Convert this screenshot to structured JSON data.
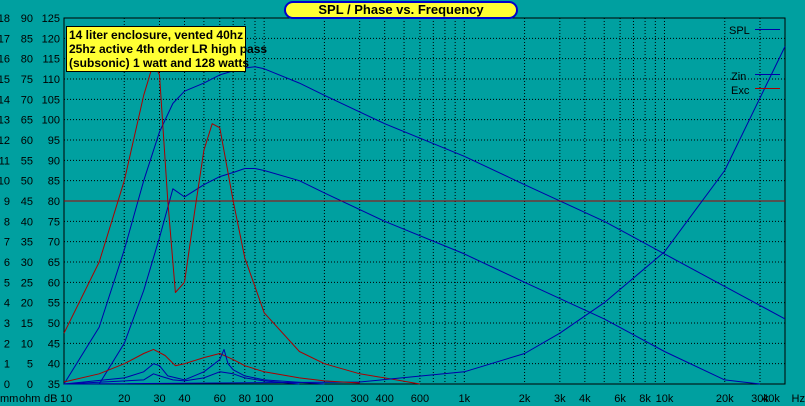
{
  "chart_data": {
    "type": "line",
    "title": "SPL / Phase vs. Frequency",
    "annotation_lines": [
      "14 liter enclosure, vented 40hz",
      "25hz active 4th order LR high pass",
      "(subsonic) 1 watt and 128 watts"
    ],
    "axis_unit_labels": [
      "mm",
      "ohm",
      "dB"
    ],
    "x_tick_labels": [
      "10",
      "20",
      "30",
      "40",
      "60",
      "80",
      "100",
      "200",
      "300",
      "400",
      "600",
      "1k",
      "2k",
      "3k",
      "4k",
      "6k",
      "8k",
      "10k",
      "20k",
      "30k",
      "40k",
      "Hz"
    ],
    "x_ticks": [
      10,
      20,
      30,
      40,
      60,
      80,
      100,
      200,
      300,
      400,
      600,
      1000,
      2000,
      3000,
      4000,
      6000,
      8000,
      10000,
      20000,
      30000,
      40000
    ],
    "xlim": [
      10,
      40000
    ],
    "x_scale": "log",
    "y_axes": [
      {
        "unit": "mm",
        "ticks": [
          0,
          1,
          2,
          3,
          4,
          5,
          6,
          7,
          8,
          9,
          10,
          11,
          12,
          13,
          14,
          15,
          16,
          17,
          18
        ]
      },
      {
        "unit": "ohm",
        "ticks": [
          0,
          5,
          10,
          15,
          20,
          25,
          30,
          35,
          40,
          45,
          50,
          55,
          60,
          65,
          70,
          75,
          80,
          85,
          90
        ]
      },
      {
        "unit": "dB",
        "ticks": [
          35,
          40,
          45,
          50,
          55,
          60,
          65,
          70,
          75,
          80,
          85,
          90,
          95,
          100,
          105,
          110,
          115,
          120,
          125
        ]
      }
    ],
    "ylim": [
      35,
      125
    ],
    "grid": true,
    "legend": [
      {
        "label": "SPL",
        "color": "#0000aa"
      },
      {
        "label": "Zin",
        "color": "#0000aa"
      },
      {
        "label": "Exc",
        "color": "#aa0000"
      }
    ],
    "series": [
      {
        "color": "#0000aa",
        "x": [
          10,
          15,
          20,
          25,
          30,
          35,
          40,
          50,
          60,
          70,
          80,
          90,
          100,
          150,
          200,
          400,
          1000,
          2000,
          5000,
          10000,
          20000,
          40000
        ],
        "y": [
          35,
          49,
          68,
          85,
          97,
          104,
          107,
          109,
          111,
          112,
          112.7,
          113,
          112.5,
          109,
          106,
          99,
          91,
          84,
          75,
          67,
          59,
          51
        ]
      },
      {
        "color": "#0000aa",
        "x": [
          15,
          20,
          25,
          30,
          35,
          40,
          50,
          60,
          70,
          80,
          90,
          100,
          150,
          200,
          400,
          1000,
          2000,
          5000,
          10000,
          20000,
          30000
        ],
        "y": [
          35,
          45,
          58,
          71,
          83,
          81,
          84,
          86,
          87,
          88,
          88,
          87.5,
          85,
          82,
          75,
          67,
          60,
          51,
          43,
          36,
          35
        ]
      },
      {
        "color": "#aa0000",
        "x": [
          10,
          15,
          20,
          25,
          28,
          30,
          33,
          36,
          40,
          45,
          50,
          55,
          60,
          70,
          80,
          100,
          150,
          200,
          300,
          400,
          600
        ],
        "y": [
          2.5,
          6,
          10,
          14.2,
          15.8,
          15.2,
          9,
          4.5,
          5,
          8.5,
          11.5,
          12.8,
          12.6,
          9,
          6.2,
          3.5,
          1.6,
          1.0,
          0.5,
          0.3,
          0
        ]
      },
      {
        "color": "#aa0000",
        "x": [
          10,
          1000,
          10000,
          40000
        ],
        "y": [
          9,
          9,
          9,
          9
        ]
      },
      {
        "color": "#0000aa",
        "x": [
          10,
          300,
          1000,
          2000,
          3000,
          5000,
          10000,
          20000,
          40000
        ],
        "y": [
          0,
          0.1,
          0.6,
          1.5,
          2.5,
          4,
          6.5,
          10.5,
          16.6
        ]
      },
      {
        "color": "#aa0000",
        "x": [
          10,
          15,
          20,
          25,
          28,
          32,
          36,
          40,
          50,
          60,
          70,
          80,
          100,
          150,
          200,
          300
        ],
        "y": [
          0.1,
          0.5,
          1.0,
          1.5,
          1.7,
          1.4,
          0.9,
          1.0,
          1.3,
          1.5,
          1.2,
          0.9,
          0.6,
          0.3,
          0.15,
          0.05
        ]
      },
      {
        "color": "#0000aa",
        "x": [
          10,
          20,
          25,
          28,
          30,
          33,
          40,
          50,
          60,
          63,
          66,
          70,
          80,
          100,
          200
        ],
        "y": [
          0,
          0.3,
          0.6,
          1.0,
          0.9,
          0.4,
          0.2,
          0.6,
          1.2,
          1.7,
          1.0,
          0.7,
          0.4,
          0.2,
          0
        ]
      },
      {
        "color": "#0000aa",
        "x": [
          10,
          25,
          28,
          30,
          35,
          40,
          50,
          60,
          70,
          80,
          100,
          150
        ],
        "y": [
          0,
          0.2,
          0.5,
          0.4,
          0.2,
          0.15,
          0.3,
          0.6,
          0.5,
          0.3,
          0.15,
          0
        ]
      }
    ]
  }
}
